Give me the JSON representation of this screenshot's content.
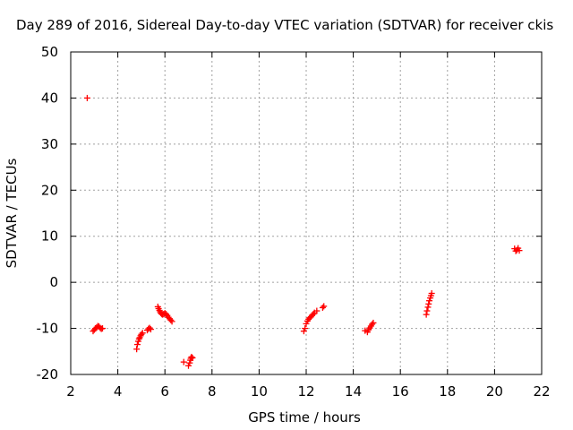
{
  "chart_data": {
    "type": "scatter",
    "title": "Day 289 of 2016, Sidereal Day-to-day VTEC variation (SDTVAR) for receiver ckis",
    "xlabel": "GPS time / hours",
    "ylabel": "SDTVAR / TECUs",
    "xlim": [
      2,
      22
    ],
    "ylim": [
      -20,
      50
    ],
    "xticks": [
      2,
      4,
      6,
      8,
      10,
      12,
      14,
      16,
      18,
      20,
      22
    ],
    "yticks": [
      -20,
      -10,
      0,
      10,
      20,
      30,
      40,
      50
    ],
    "grid": true,
    "marker": "plus",
    "marker_color": "#ff0000",
    "series": [
      {
        "points": [
          [
            2.7,
            40.0
          ],
          [
            2.95,
            -10.6
          ],
          [
            3.0,
            -10.3
          ],
          [
            3.05,
            -10.0
          ],
          [
            3.1,
            -9.8
          ],
          [
            3.15,
            -9.5
          ],
          [
            3.2,
            -9.6
          ],
          [
            3.25,
            -9.9
          ],
          [
            3.3,
            -10.1
          ],
          [
            3.35,
            -10.0
          ],
          [
            4.8,
            -14.5
          ],
          [
            4.83,
            -13.5
          ],
          [
            4.87,
            -12.8
          ],
          [
            4.9,
            -12.3
          ],
          [
            4.93,
            -12.0
          ],
          [
            4.97,
            -11.6
          ],
          [
            5.0,
            -11.3
          ],
          [
            5.05,
            -11.0
          ],
          [
            5.25,
            -10.4
          ],
          [
            5.3,
            -10.1
          ],
          [
            5.35,
            -9.9
          ],
          [
            5.4,
            -10.2
          ],
          [
            5.7,
            -5.3
          ],
          [
            5.73,
            -5.7
          ],
          [
            5.77,
            -6.1
          ],
          [
            5.8,
            -6.4
          ],
          [
            5.83,
            -6.7
          ],
          [
            5.87,
            -6.9
          ],
          [
            5.9,
            -7.0
          ],
          [
            5.95,
            -6.9
          ],
          [
            6.0,
            -6.7
          ],
          [
            6.05,
            -6.9
          ],
          [
            6.1,
            -7.2
          ],
          [
            6.15,
            -7.6
          ],
          [
            6.2,
            -7.9
          ],
          [
            6.25,
            -8.2
          ],
          [
            6.3,
            -8.5
          ],
          [
            6.8,
            -17.3
          ],
          [
            7.0,
            -18.1
          ],
          [
            7.05,
            -17.5
          ],
          [
            7.08,
            -16.9
          ],
          [
            7.1,
            -16.5
          ],
          [
            7.13,
            -16.2
          ],
          [
            7.17,
            -16.4
          ],
          [
            11.9,
            -10.6
          ],
          [
            11.95,
            -10.0
          ],
          [
            12.0,
            -9.0
          ],
          [
            12.05,
            -8.4
          ],
          [
            12.1,
            -8.0
          ],
          [
            12.15,
            -7.7
          ],
          [
            12.2,
            -7.5
          ],
          [
            12.25,
            -7.2
          ],
          [
            12.3,
            -6.9
          ],
          [
            12.35,
            -6.6
          ],
          [
            12.45,
            -6.2
          ],
          [
            12.7,
            -5.5
          ],
          [
            12.75,
            -5.2
          ],
          [
            14.5,
            -10.5
          ],
          [
            14.6,
            -10.8
          ],
          [
            14.65,
            -10.3
          ],
          [
            14.7,
            -9.9
          ],
          [
            14.75,
            -9.5
          ],
          [
            14.8,
            -9.1
          ],
          [
            14.85,
            -8.8
          ],
          [
            17.1,
            -7.0
          ],
          [
            17.13,
            -6.2
          ],
          [
            17.17,
            -5.4
          ],
          [
            17.2,
            -4.7
          ],
          [
            17.23,
            -4.0
          ],
          [
            17.27,
            -3.4
          ],
          [
            17.3,
            -2.9
          ],
          [
            17.33,
            -2.4
          ],
          [
            20.85,
            7.3
          ],
          [
            20.9,
            6.8
          ],
          [
            20.95,
            7.0
          ],
          [
            21.0,
            7.4
          ],
          [
            21.05,
            6.9
          ]
        ]
      }
    ]
  }
}
